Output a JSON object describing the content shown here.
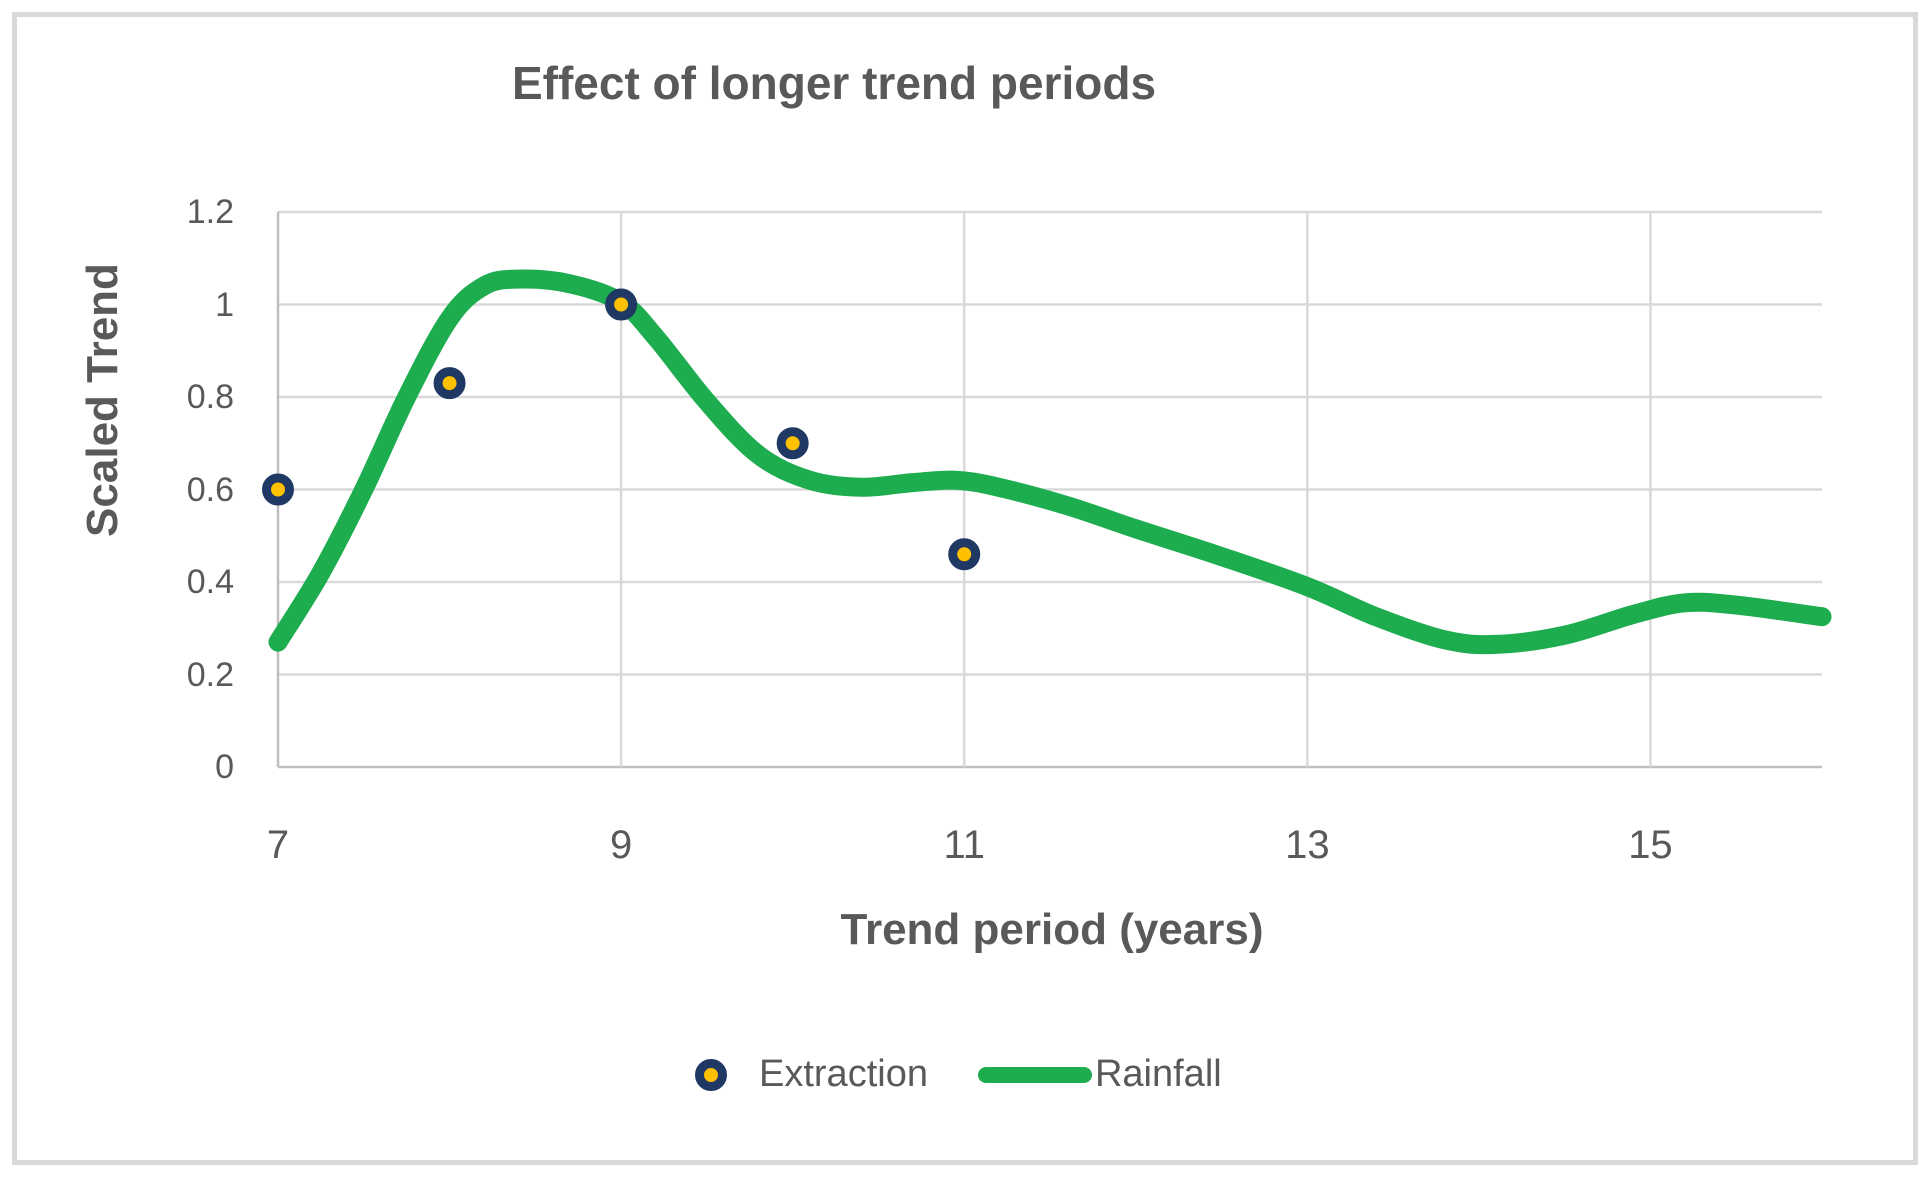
{
  "chart_data": {
    "type": "line+scatter",
    "title": "Effect of longer trend periods",
    "xlabel": "Trend period (years)",
    "ylabel": "Scaled Trend",
    "xlim": [
      7,
      16
    ],
    "ylim": [
      0,
      1.2
    ],
    "x_ticks": [
      7,
      9,
      11,
      13,
      15
    ],
    "x_tick_labels": [
      "7",
      "9",
      "11",
      "13",
      "15"
    ],
    "y_ticks": [
      0,
      0.2,
      0.4,
      0.6,
      0.8,
      1,
      1.2
    ],
    "y_tick_labels": [
      "0",
      "0.2",
      "0.4",
      "0.6",
      "0.8",
      "1",
      "1.2"
    ],
    "grid": "on",
    "legend_position": "bottom-center",
    "colors": {
      "rainfall_line": "#1DAD4F",
      "extraction_fill": "#FFC000",
      "extraction_ring": "#1F3864",
      "text": "#595959",
      "gridline": "#D9D9D9",
      "axis_line": "#BFBFBF",
      "chart_border": "#D9D9D9"
    },
    "series": [
      {
        "name": "Extraction",
        "type": "scatter",
        "points": [
          [
            7,
            0.6
          ],
          [
            8,
            0.83
          ],
          [
            9,
            1.0
          ],
          [
            10,
            0.7
          ],
          [
            11,
            0.46
          ]
        ]
      },
      {
        "name": "Rainfall",
        "type": "line",
        "points": [
          [
            7.0,
            0.27
          ],
          [
            7.25,
            0.42
          ],
          [
            7.5,
            0.6
          ],
          [
            7.75,
            0.8
          ],
          [
            8.0,
            0.97
          ],
          [
            8.2,
            1.04
          ],
          [
            8.4,
            1.055
          ],
          [
            8.7,
            1.045
          ],
          [
            9.0,
            1.005
          ],
          [
            9.2,
            0.93
          ],
          [
            9.5,
            0.79
          ],
          [
            9.8,
            0.675
          ],
          [
            10.1,
            0.62
          ],
          [
            10.4,
            0.605
          ],
          [
            10.7,
            0.615
          ],
          [
            10.95,
            0.62
          ],
          [
            11.2,
            0.605
          ],
          [
            11.6,
            0.565
          ],
          [
            12.0,
            0.515
          ],
          [
            12.5,
            0.455
          ],
          [
            13.0,
            0.39
          ],
          [
            13.4,
            0.325
          ],
          [
            13.8,
            0.275
          ],
          [
            14.1,
            0.265
          ],
          [
            14.5,
            0.285
          ],
          [
            14.9,
            0.33
          ],
          [
            15.2,
            0.355
          ],
          [
            15.5,
            0.35
          ],
          [
            16.0,
            0.325
          ]
        ]
      }
    ]
  }
}
